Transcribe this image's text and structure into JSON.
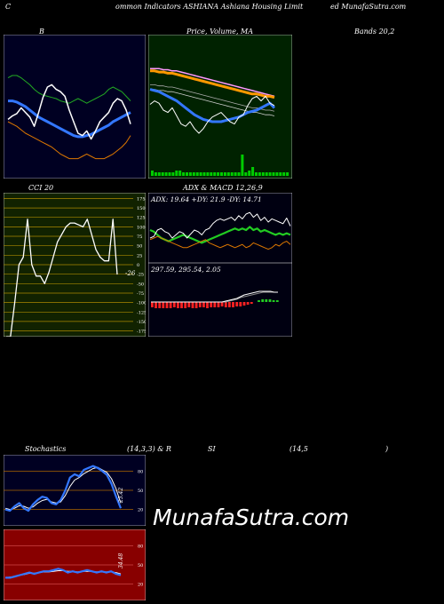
{
  "header": {
    "c_letter": "C",
    "title": "ommon  Indicators ASHIANA Ashiana  Housing Limit",
    "site": "ed MunafaSutra.com"
  },
  "panel_titles": {
    "bollinger_left": "B",
    "price_mid": "Price,  Volume,  MA",
    "bands_right": "Bands 20,2",
    "cci": "CCI 20",
    "adx_macd": "ADX  & MACD 12,26,9",
    "stoch_left": "Stochastics",
    "stoch_mid": "(14,3,3) & R",
    "rsi_mid": "SI",
    "rsi_right": "(14,5",
    "rsi_close": ")"
  },
  "adx_info": "ADX: 19.64  +DY: 21.9 -DY: 14.71",
  "macd_info": "297.59,  295.54,  2.05",
  "cci_value": "-26",
  "stoch_value": "23.42",
  "rsi_value": "34.48",
  "watermark": "MunafaSutra.com",
  "colors": {
    "bollinger_bg": "#000022",
    "price_bg": "#002200",
    "cci_bg": "#112200",
    "adx_bg": "#000011",
    "stoch_bg": "#000022",
    "rsi_bg": "#880000",
    "price_line": "#ffffff",
    "blue_line": "#3377ff",
    "green_line": "#22aa22",
    "orange_line": "#dd7700",
    "cci_grid": "#aa8800",
    "macd_hist": "#ff2222",
    "volume_bar": "#00cc00"
  },
  "chart_data": [
    {
      "name_hint": "bollinger",
      "type": "line",
      "series": [
        {
          "values": [
            42,
            45,
            47,
            52,
            48,
            44,
            36,
            48,
            61,
            70,
            72,
            68,
            66,
            62,
            50,
            40,
            30,
            28,
            32,
            25,
            32,
            40,
            44,
            48,
            56,
            60,
            58,
            50,
            38
          ]
        },
        {
          "values": [
            58,
            58,
            57,
            55,
            53,
            50,
            47,
            44,
            42,
            40,
            38,
            36,
            34,
            32,
            30,
            28,
            27,
            27,
            28,
            29,
            31,
            33,
            35,
            37,
            40,
            42,
            44,
            46,
            48
          ]
        },
        {
          "values": [
            78,
            80,
            80,
            78,
            75,
            72,
            68,
            65,
            63,
            62,
            61,
            60,
            58,
            57,
            56,
            58,
            60,
            58,
            56,
            58,
            60,
            62,
            64,
            68,
            70,
            68,
            66,
            62,
            58
          ]
        },
        {
          "values": [
            40,
            38,
            36,
            33,
            30,
            28,
            26,
            24,
            22,
            20,
            18,
            15,
            12,
            10,
            8,
            8,
            8,
            10,
            12,
            10,
            8,
            8,
            8,
            10,
            12,
            15,
            18,
            22,
            28
          ]
        }
      ]
    },
    {
      "name_hint": "price_ma",
      "type": "line",
      "series": [
        {
          "values": [
            55,
            58,
            56,
            50,
            48,
            52,
            45,
            38,
            36,
            40,
            34,
            30,
            34,
            40,
            44,
            46,
            48,
            44,
            40,
            38,
            44,
            46,
            54,
            60,
            62,
            58,
            62,
            56,
            54
          ]
        },
        {
          "values": [
            84,
            84,
            83,
            83,
            82,
            82,
            81,
            80,
            79,
            78,
            77,
            76,
            75,
            74,
            73,
            72,
            71,
            70,
            69,
            68,
            67,
            66,
            65,
            64,
            64,
            63,
            62,
            62,
            61
          ]
        },
        {
          "values": [
            86,
            86,
            86,
            85,
            85,
            84,
            84,
            83,
            82,
            81,
            80,
            79,
            78,
            77,
            76,
            75,
            74,
            73,
            72,
            71,
            70,
            69,
            68,
            67,
            66,
            65,
            64,
            63,
            62
          ]
        },
        {
          "values": [
            68,
            67,
            66,
            64,
            62,
            60,
            58,
            55,
            52,
            49,
            46,
            44,
            42,
            41,
            40,
            40,
            40,
            41,
            42,
            43,
            44,
            46,
            48,
            49,
            50,
            52,
            54,
            56,
            52
          ]
        }
      ],
      "volume": [
        3,
        2,
        2,
        2,
        2,
        2,
        2,
        3,
        3,
        2,
        2,
        2,
        2,
        2,
        2,
        2,
        2,
        2,
        2,
        2,
        2,
        2,
        2,
        2,
        2,
        2,
        12,
        2,
        3,
        5,
        2,
        2,
        2,
        2,
        2,
        2,
        2,
        2,
        2,
        2
      ]
    },
    {
      "name_hint": "cci",
      "type": "line",
      "yticks": [
        175,
        150,
        125,
        100,
        75,
        50,
        25,
        0,
        -25,
        -50,
        -75,
        -100,
        -125,
        -150,
        -175
      ],
      "ylim": [
        -190,
        190
      ],
      "values": [
        -200,
        -200,
        -100,
        0,
        20,
        120,
        0,
        -30,
        -30,
        -50,
        -20,
        20,
        60,
        80,
        100,
        110,
        110,
        105,
        100,
        120,
        80,
        40,
        20,
        10,
        10,
        120,
        -26
      ]
    },
    {
      "name_hint": "adx",
      "type": "line",
      "series": [
        {
          "values": [
            30,
            32,
            40,
            42,
            38,
            36,
            30,
            34,
            38,
            36,
            30,
            35,
            40,
            38,
            34,
            40,
            42,
            48,
            52,
            54,
            52,
            54,
            56,
            52,
            58,
            54,
            60,
            62,
            56,
            60,
            52,
            56,
            50,
            54,
            52,
            50,
            48,
            55,
            45
          ]
        },
        {
          "values": [
            40,
            38,
            34,
            30,
            28,
            26,
            28,
            30,
            32,
            34,
            32,
            30,
            28,
            26,
            24,
            26,
            28,
            30,
            32,
            34,
            36,
            38,
            40,
            42,
            40,
            42,
            40,
            44,
            40,
            42,
            38,
            40,
            38,
            36,
            34,
            36,
            34,
            36,
            34
          ]
        },
        {
          "values": [
            28,
            30,
            32,
            30,
            28,
            26,
            24,
            22,
            20,
            18,
            18,
            20,
            22,
            24,
            26,
            28,
            24,
            22,
            20,
            18,
            20,
            22,
            20,
            18,
            20,
            22,
            18,
            20,
            24,
            22,
            20,
            18,
            16,
            18,
            22,
            20,
            24,
            26,
            22
          ]
        }
      ]
    },
    {
      "name_hint": "macd",
      "type": "line",
      "series": [
        {
          "values": [
            0,
            0,
            0,
            0,
            0,
            0,
            0,
            0,
            0,
            0,
            0,
            0,
            0,
            0,
            0,
            0,
            0,
            0,
            0,
            0,
            2,
            4,
            6,
            8,
            12,
            16,
            18,
            20,
            22,
            24,
            24,
            24,
            24,
            22,
            22
          ]
        },
        {
          "values": [
            0,
            0,
            0,
            0,
            0,
            0,
            0,
            0,
            0,
            0,
            0,
            0,
            0,
            0,
            0,
            0,
            0,
            0,
            0,
            0,
            0,
            2,
            4,
            6,
            10,
            12,
            14,
            16,
            18,
            20,
            22,
            22,
            22,
            22,
            22
          ]
        }
      ],
      "histogram": [
        -6,
        -7,
        -7,
        -7,
        -7,
        -7,
        -6,
        -7,
        -7,
        -7,
        -6,
        -7,
        -7,
        -6,
        -6,
        -7,
        -6,
        -6,
        -6,
        -5,
        -6,
        -6,
        -6,
        -5,
        -5,
        -4,
        -3,
        -2,
        0,
        2,
        3,
        3,
        3,
        2,
        2
      ]
    },
    {
      "name_hint": "stochastics",
      "type": "line",
      "yticks": [
        80,
        50,
        20
      ],
      "series": [
        {
          "values": [
            20,
            18,
            25,
            30,
            22,
            18,
            28,
            35,
            40,
            38,
            30,
            28,
            35,
            50,
            70,
            75,
            72,
            82,
            85,
            88,
            85,
            80,
            74,
            60,
            40,
            22
          ]
        },
        {
          "values": [
            22,
            20,
            22,
            26,
            25,
            22,
            24,
            30,
            34,
            36,
            32,
            30,
            32,
            42,
            56,
            66,
            70,
            76,
            80,
            84,
            86,
            82,
            78,
            68,
            52,
            30
          ]
        }
      ]
    },
    {
      "name_hint": "rsi",
      "type": "line",
      "yticks": [
        80,
        50,
        20
      ],
      "series": [
        {
          "values": [
            30,
            30,
            32,
            34,
            36,
            38,
            36,
            38,
            40,
            40,
            42,
            44,
            42,
            38,
            40,
            38,
            40,
            42,
            40,
            38,
            40,
            38,
            40,
            36,
            34
          ]
        },
        {
          "values": [
            30,
            31,
            32,
            34,
            35,
            37,
            37,
            38,
            39,
            39,
            40,
            41,
            41,
            40,
            40,
            39,
            40,
            40,
            40,
            39,
            39,
            39,
            39,
            38,
            36
          ]
        }
      ]
    }
  ]
}
